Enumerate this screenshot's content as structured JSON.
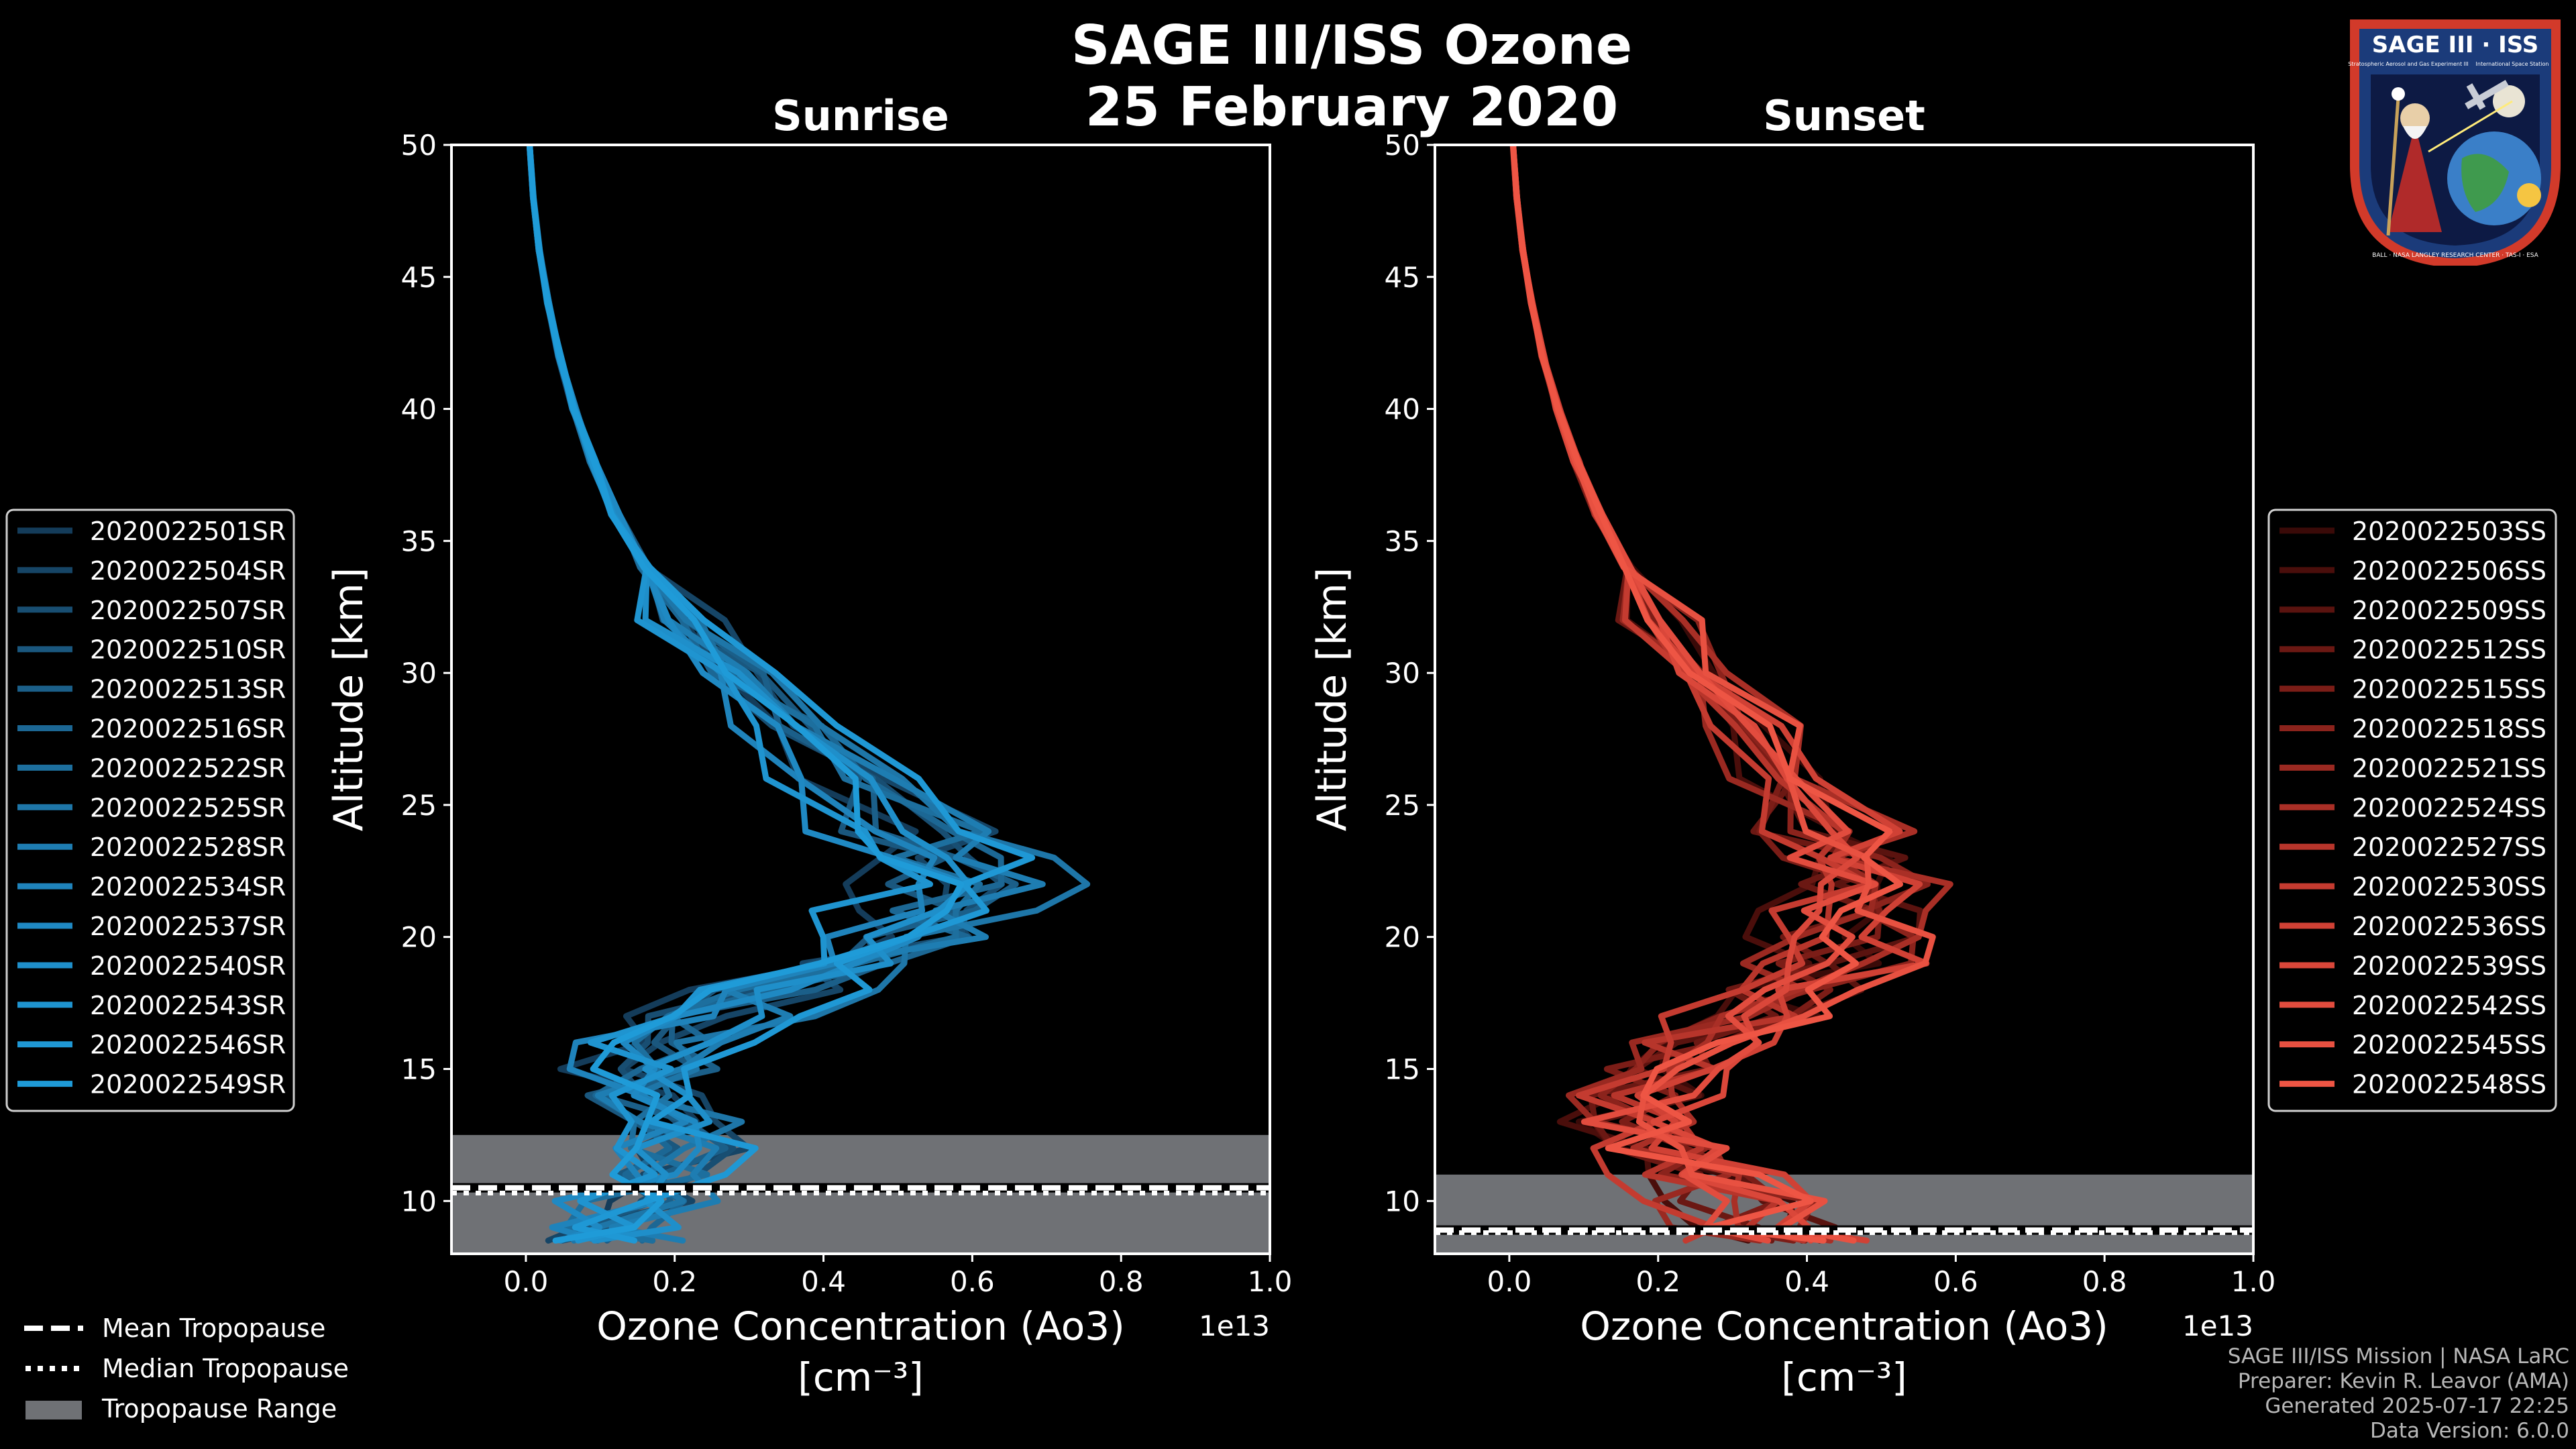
{
  "title": {
    "line1": "SAGE III/ISS Ozone",
    "line2": "25 February 2020"
  },
  "logo": {
    "top": "SAGE III · ISS",
    "ring": "BALL · NASA LANGLEY RESEARCH CENTER · TAS-I · ESA",
    "sub1": "Stratospheric Aerosol and Gas Experiment III",
    "sub2": "International Space Station"
  },
  "colors": {
    "sunrise": "#1f9bd8",
    "sunset": "#ee5544",
    "range": "#6f7175",
    "background": "#000000"
  },
  "legend_bottom": {
    "mean": "Mean Tropopause",
    "median": "Median Tropopause",
    "range": "Tropopause Range"
  },
  "credits": {
    "line1": "SAGE III/ISS Mission | NASA LaRC",
    "line2": "Preparer: Kevin R. Leavor (AMA)",
    "line3": "Generated 2025-07-17 22:25",
    "line4": "Data Version: 6.0.0"
  },
  "chart_data": [
    {
      "type": "line",
      "title": "Sunrise",
      "xlabel_line1": "Ozone Concentration (Ao3)",
      "xlabel_line2": "[cm⁻³]",
      "ylabel": "Altitude [km]",
      "x_offset_label": "1e13",
      "xlim": [
        -0.1,
        1.0
      ],
      "ylim": [
        8,
        50
      ],
      "xticks": [
        0.0,
        0.2,
        0.4,
        0.6,
        0.8,
        1.0
      ],
      "xtick_labels": [
        "0.0",
        "0.2",
        "0.4",
        "0.6",
        "0.8",
        "1.0"
      ],
      "yticks": [
        10,
        15,
        20,
        25,
        30,
        35,
        40,
        45,
        50
      ],
      "ytick_labels": [
        "10",
        "15",
        "20",
        "25",
        "30",
        "35",
        "40",
        "45",
        "50"
      ],
      "tropopause": {
        "mean": 10.5,
        "median": 10.3,
        "range": [
          8,
          12.5
        ]
      },
      "base_profile": {
        "altitude": [
          50,
          48,
          46,
          44,
          42,
          40,
          38,
          36,
          34,
          32,
          30,
          28,
          26,
          24,
          23,
          22,
          21,
          20,
          19,
          18,
          17,
          16,
          15,
          14,
          13,
          12,
          11,
          10,
          9,
          8.5
        ],
        "value": [
          0.005,
          0.01,
          0.018,
          0.03,
          0.045,
          0.065,
          0.09,
          0.12,
          0.16,
          0.21,
          0.27,
          0.35,
          0.43,
          0.5,
          0.54,
          0.56,
          0.55,
          0.5,
          0.42,
          0.32,
          0.24,
          0.18,
          0.15,
          0.15,
          0.17,
          0.2,
          0.18,
          0.15,
          0.12,
          0.1
        ]
      },
      "series": [
        {
          "name": "2020022501SR",
          "color": "#143c5a"
        },
        {
          "name": "2020022504SR",
          "color": "#164566"
        },
        {
          "name": "2020022507SR",
          "color": "#184e72"
        },
        {
          "name": "2020022510SR",
          "color": "#1a577e"
        },
        {
          "name": "2020022513SR",
          "color": "#1b5f89"
        },
        {
          "name": "2020022516SR",
          "color": "#1c6794"
        },
        {
          "name": "2020022522SR",
          "color": "#1d6f9e"
        },
        {
          "name": "2020022525SR",
          "color": "#1e76a8"
        },
        {
          "name": "2020022528SR",
          "color": "#1e7db2"
        },
        {
          "name": "2020022534SR",
          "color": "#1f83bb"
        },
        {
          "name": "2020022537SR",
          "color": "#1f89c3"
        },
        {
          "name": "2020022540SR",
          "color": "#1f8fca"
        },
        {
          "name": "2020022543SR",
          "color": "#1f94d0"
        },
        {
          "name": "2020022546SR",
          "color": "#1f98d5"
        },
        {
          "name": "2020022549SR",
          "color": "#1f9bd8"
        }
      ]
    },
    {
      "type": "line",
      "title": "Sunset",
      "xlabel_line1": "Ozone Concentration (Ao3)",
      "xlabel_line2": "[cm⁻³]",
      "ylabel": "Altitude [km]",
      "x_offset_label": "1e13",
      "xlim": [
        -0.1,
        1.0
      ],
      "ylim": [
        8,
        50
      ],
      "xticks": [
        0.0,
        0.2,
        0.4,
        0.6,
        0.8,
        1.0
      ],
      "xtick_labels": [
        "0.0",
        "0.2",
        "0.4",
        "0.6",
        "0.8",
        "1.0"
      ],
      "yticks": [
        10,
        15,
        20,
        25,
        30,
        35,
        40,
        45,
        50
      ],
      "ytick_labels": [
        "10",
        "15",
        "20",
        "25",
        "30",
        "35",
        "40",
        "45",
        "50"
      ],
      "tropopause": {
        "mean": 8.9,
        "median": 8.8,
        "range": [
          8,
          11
        ]
      },
      "base_profile": {
        "altitude": [
          50,
          48,
          46,
          44,
          42,
          40,
          38,
          36,
          34,
          32,
          30,
          28,
          26,
          24,
          23,
          22,
          21,
          20,
          19,
          18,
          17,
          16,
          15,
          14,
          13,
          12,
          11,
          10,
          9,
          8.5
        ],
        "value": [
          0.005,
          0.01,
          0.018,
          0.03,
          0.045,
          0.065,
          0.09,
          0.12,
          0.16,
          0.2,
          0.25,
          0.31,
          0.36,
          0.41,
          0.44,
          0.46,
          0.47,
          0.45,
          0.42,
          0.37,
          0.32,
          0.26,
          0.21,
          0.18,
          0.17,
          0.2,
          0.25,
          0.3,
          0.33,
          0.35
        ]
      },
      "series": [
        {
          "name": "2020022503SS",
          "color": "#3a0a08"
        },
        {
          "name": "2020022506SS",
          "color": "#4a0e0b"
        },
        {
          "name": "2020022509SS",
          "color": "#5a130f"
        },
        {
          "name": "2020022512SS",
          "color": "#6b1813"
        },
        {
          "name": "2020022515SS",
          "color": "#7b1d17"
        },
        {
          "name": "2020022518SS",
          "color": "#8b231c"
        },
        {
          "name": "2020022521SS",
          "color": "#9a2921"
        },
        {
          "name": "2020022524SS",
          "color": "#a92f26"
        },
        {
          "name": "2020022527SS",
          "color": "#b7352b"
        },
        {
          "name": "2020022530SS",
          "color": "#c43b30"
        },
        {
          "name": "2020022536SS",
          "color": "#d04135"
        },
        {
          "name": "2020022539SS",
          "color": "#da473a"
        },
        {
          "name": "2020022542SS",
          "color": "#e24c3e"
        },
        {
          "name": "2020022545SS",
          "color": "#e85141"
        },
        {
          "name": "2020022548SS",
          "color": "#ee5544"
        }
      ]
    }
  ]
}
